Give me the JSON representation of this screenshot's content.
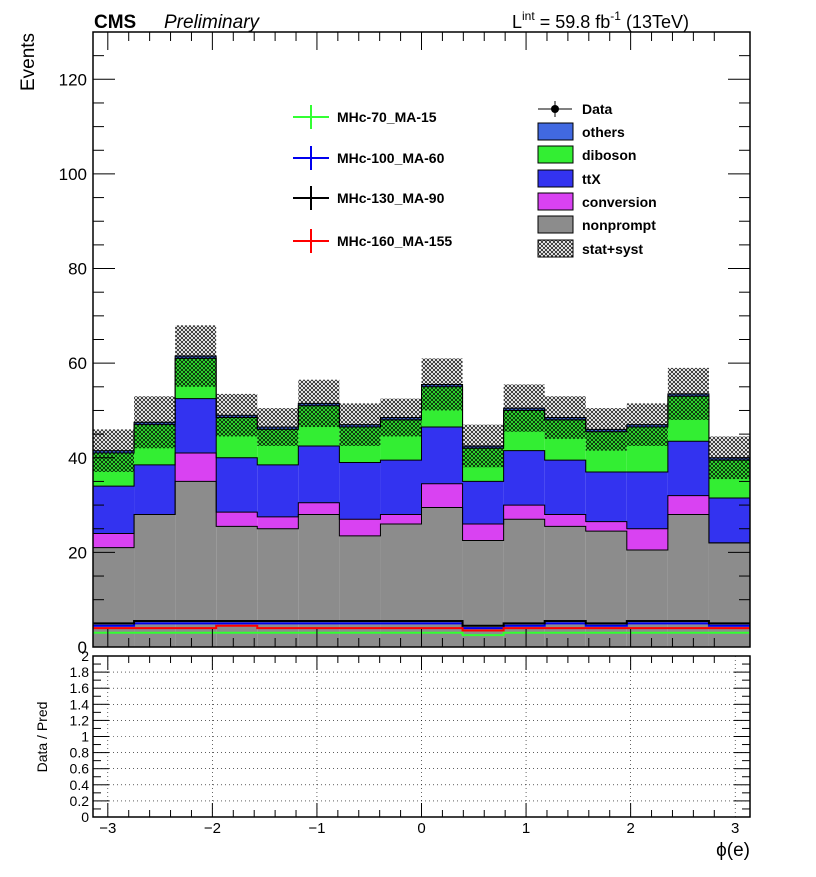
{
  "header": {
    "experiment": "CMS",
    "status": "Preliminary",
    "lumi_prefix": "L",
    "lumi_sup": "int",
    "lumi_mid": " = 59.8 fb",
    "lumi_exp": "-1",
    "lumi_suffix": " (13TeV)"
  },
  "chart_data": [
    {
      "type": "bar",
      "stacked": true,
      "ylabel": "Events",
      "ylim": [
        0,
        130
      ],
      "yticks": [
        "0",
        "20",
        "40",
        "60",
        "80",
        "100",
        "120"
      ],
      "xlim": [
        -3.1416,
        3.1416
      ],
      "bin_edges": [
        -3.1416,
        -2.7489,
        -2.3562,
        -1.9635,
        -1.5708,
        -1.1781,
        -0.7854,
        -0.3927,
        0.0,
        0.3927,
        0.7854,
        1.1781,
        1.5708,
        1.9635,
        2.3562,
        2.7489,
        3.1416
      ],
      "series": [
        {
          "name": "nonprompt",
          "color": "#8c8c8c",
          "values": [
            21.0,
            28.0,
            35.0,
            25.5,
            25.0,
            28.0,
            23.5,
            26.0,
            29.5,
            22.5,
            27.0,
            25.5,
            24.5,
            20.5,
            28.0,
            22.0
          ]
        },
        {
          "name": "conversion",
          "color": "#d942f2",
          "values": [
            3.0,
            0.0,
            6.0,
            3.0,
            2.5,
            2.5,
            3.5,
            2.0,
            5.0,
            3.5,
            3.0,
            2.5,
            2.0,
            4.5,
            4.0,
            0.0
          ]
        },
        {
          "name": "ttX",
          "color": "#3333f0",
          "values": [
            10.0,
            10.5,
            11.5,
            11.5,
            11.0,
            12.0,
            12.0,
            11.5,
            12.0,
            9.0,
            11.5,
            11.5,
            10.5,
            12.0,
            11.5,
            9.5
          ]
        },
        {
          "name": "diboson",
          "color": "#33ee33",
          "values": [
            7.0,
            8.5,
            8.5,
            8.5,
            7.5,
            8.5,
            7.5,
            8.5,
            8.5,
            7.0,
            8.5,
            8.5,
            8.5,
            9.5,
            9.5,
            8.0
          ]
        },
        {
          "name": "others",
          "color": "#4169e1",
          "values": [
            0.5,
            0.5,
            0.5,
            0.5,
            0.5,
            0.5,
            0.5,
            0.5,
            0.5,
            0.5,
            0.5,
            0.5,
            0.5,
            0.5,
            0.5,
            0.5
          ]
        }
      ],
      "uncertainty": {
        "name": "stat+syst",
        "values": [
          4.5,
          5.5,
          6.5,
          4.5,
          4.0,
          5.0,
          4.5,
          4.0,
          5.5,
          4.5,
          5.0,
          4.5,
          4.5,
          4.5,
          5.5,
          4.5
        ]
      },
      "data": {
        "name": "Data",
        "marker": "filled-circle",
        "values": []
      },
      "signals": [
        {
          "name": "MHc-70_MA-15",
          "color": "#33ff33",
          "values": [
            3.0,
            3.0,
            3.0,
            3.0,
            3.0,
            3.0,
            3.0,
            3.0,
            3.0,
            2.5,
            3.0,
            3.0,
            3.0,
            3.0,
            3.0,
            3.0
          ]
        },
        {
          "name": "MHc-100_MA-60",
          "color": "#0000ee",
          "values": [
            4.5,
            5.0,
            5.0,
            5.0,
            5.0,
            5.0,
            5.0,
            5.0,
            5.0,
            4.0,
            4.5,
            5.0,
            4.5,
            5.0,
            5.0,
            4.5
          ]
        },
        {
          "name": "MHc-130_MA-90",
          "color": "#000000",
          "values": [
            5.0,
            5.5,
            5.5,
            5.5,
            5.5,
            5.5,
            5.5,
            5.5,
            5.5,
            4.5,
            5.0,
            5.5,
            5.0,
            5.5,
            5.5,
            5.0
          ]
        },
        {
          "name": "MHc-160_MA-155",
          "color": "#ff0000",
          "values": [
            4.0,
            4.0,
            4.0,
            4.5,
            4.0,
            4.0,
            4.0,
            4.0,
            4.0,
            3.5,
            4.0,
            4.0,
            4.0,
            4.0,
            4.0,
            4.0
          ]
        }
      ],
      "legend": {
        "placement": "top-right",
        "signal_placement": "top-center"
      }
    },
    {
      "type": "scatter",
      "ylabel": "Data / Pred",
      "xlabel": "ϕ(e)",
      "ylim": [
        0,
        2
      ],
      "yticks": [
        "0",
        "0.2",
        "0.4",
        "0.6",
        "0.8",
        "1",
        "1.2",
        "1.4",
        "1.6",
        "1.8",
        "2"
      ],
      "xlim": [
        -3.1416,
        3.1416
      ],
      "xticks": [
        "−3",
        "−2",
        "−1",
        "0",
        "1",
        "2",
        "3"
      ],
      "grid": true,
      "values": []
    }
  ]
}
